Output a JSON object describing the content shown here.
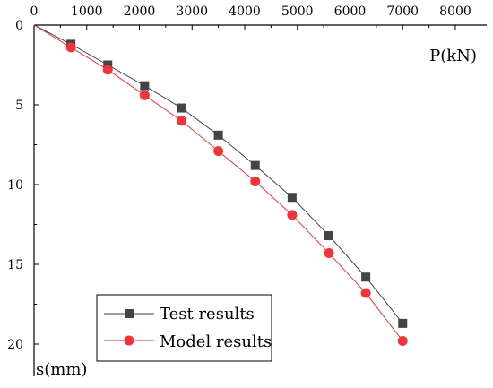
{
  "chart_data": {
    "type": "line",
    "xlabel": "P(kN)",
    "ylabel": "s(mm)",
    "xlim": [
      0,
      8000
    ],
    "ylim": [
      0,
      22
    ],
    "y_inverted": true,
    "x_axis_position": "top",
    "x_ticks": [
      0,
      1000,
      2000,
      3000,
      4000,
      5000,
      6000,
      7000,
      8000
    ],
    "y_ticks": [
      0,
      5,
      10,
      15,
      20
    ],
    "grid": false,
    "legend_position": "bottom-left",
    "series": [
      {
        "name": "Test results",
        "marker": "square",
        "color": "#444444",
        "x": [
          0,
          700,
          1400,
          2100,
          2800,
          3500,
          4200,
          4900,
          5600,
          6300,
          7000
        ],
        "y": [
          0,
          1.2,
          2.5,
          3.8,
          5.2,
          6.9,
          8.8,
          10.8,
          13.2,
          15.8,
          18.7
        ]
      },
      {
        "name": "Model results",
        "marker": "circle",
        "color": "#f0353a",
        "x": [
          0,
          700,
          1400,
          2100,
          2800,
          3500,
          4200,
          4900,
          5600,
          6300,
          7000
        ],
        "y": [
          0,
          1.4,
          2.8,
          4.4,
          6.0,
          7.9,
          9.8,
          11.9,
          14.3,
          16.8,
          19.8
        ]
      }
    ]
  }
}
